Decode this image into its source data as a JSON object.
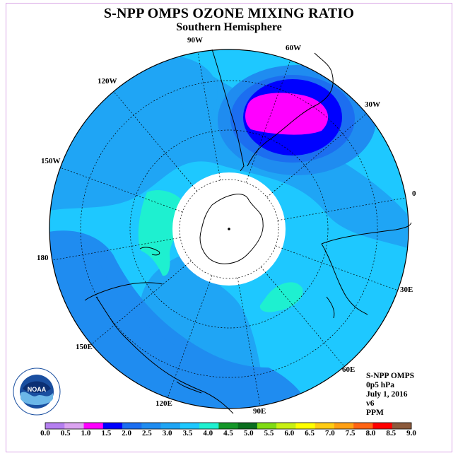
{
  "title": "S-NPP OMPS OZONE MIXING RATIO",
  "subtitle": "Southern Hemisphere",
  "longitude_labels": [
    "90W",
    "60W",
    "30W",
    "120W",
    "150W",
    "0",
    "180",
    "30E",
    "150E",
    "60E",
    "120E",
    "90E"
  ],
  "info": {
    "instrument": "S-NPP OMPS",
    "level": "0p5 hPa",
    "date": "July 1, 2016",
    "version": "v6",
    "units": "PPM"
  },
  "logo_text": "NOAA",
  "colorbar": {
    "ticks": [
      "0.0",
      "0.5",
      "1.0",
      "1.5",
      "2.0",
      "2.5",
      "3.0",
      "3.5",
      "4.0",
      "4.5",
      "5.0",
      "5.5",
      "6.0",
      "6.5",
      "7.0",
      "7.5",
      "8.0",
      "8.5",
      "9.0"
    ],
    "colors": [
      "#b57ff0",
      "#dba3f0",
      "#ff00ff",
      "#0000ff",
      "#1c6ef0",
      "#1f8cf0",
      "#1fa5f5",
      "#1ec8ff",
      "#1ef0d0",
      "#149628",
      "#0a6e1e",
      "#80dc14",
      "#c8f014",
      "#ffff00",
      "#ffcc14",
      "#ffa014",
      "#ff6414",
      "#ff0000",
      "#8c5a3c"
    ]
  },
  "colors": {
    "deep_blue": "#0000ff",
    "magenta": "#ff00ff",
    "mid_blue": "#1f8cf0",
    "light_blue": "#1fa5f5",
    "cyan": "#1ec8ff",
    "turquoise": "#1ef0d0",
    "frame": "#d9a6e6"
  }
}
